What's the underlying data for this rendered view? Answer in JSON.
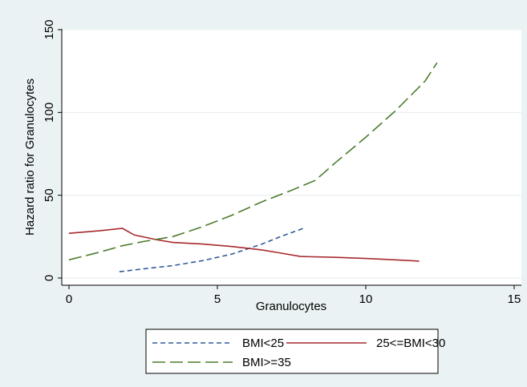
{
  "chart_data": {
    "type": "line",
    "title": "",
    "xlabel": "Granulocytes",
    "ylabel": "Hazard ratio for Granulocytes",
    "xlim": [
      0,
      15
    ],
    "ylim": [
      0,
      150
    ],
    "xticks": [
      0,
      5,
      10,
      15
    ],
    "yticks": [
      0,
      50,
      100,
      150
    ],
    "grid": "horizontal",
    "legend_position": "bottom",
    "series": [
      {
        "name": "BMI<25",
        "color": "#2e5a9a",
        "dash": "short-dash",
        "points": [
          [
            1.7,
            3.8
          ],
          [
            2.5,
            5.5
          ],
          [
            3.5,
            7.5
          ],
          [
            4.5,
            10.5
          ],
          [
            5.5,
            14.5
          ],
          [
            6.5,
            20.5
          ],
          [
            7.2,
            25.5
          ],
          [
            7.9,
            30.0
          ]
        ]
      },
      {
        "name": "25<=BMI<30",
        "color": "#a8292e",
        "dash": "solid",
        "points": [
          [
            0.0,
            27.0
          ],
          [
            1.0,
            28.5
          ],
          [
            1.8,
            30.0
          ],
          [
            2.2,
            26.0
          ],
          [
            3.0,
            23.0
          ],
          [
            3.5,
            21.5
          ],
          [
            4.5,
            20.5
          ],
          [
            5.5,
            19.0
          ],
          [
            6.5,
            17.0
          ],
          [
            7.0,
            15.5
          ],
          [
            7.8,
            13.0
          ],
          [
            9.0,
            12.5
          ],
          [
            10.0,
            11.8
          ],
          [
            11.0,
            11.0
          ],
          [
            11.8,
            10.2
          ]
        ]
      },
      {
        "name": "BMI>=35",
        "color": "#4d7c2c",
        "dash": "long-dash",
        "points": [
          [
            0.0,
            11.0
          ],
          [
            1.0,
            15.5
          ],
          [
            1.8,
            19.5
          ],
          [
            2.5,
            22.0
          ],
          [
            3.5,
            25.0
          ],
          [
            4.5,
            31.0
          ],
          [
            5.5,
            38.0
          ],
          [
            6.5,
            46.0
          ],
          [
            7.5,
            53.0
          ],
          [
            8.3,
            59.0
          ],
          [
            9.0,
            70.0
          ],
          [
            10.0,
            85.0
          ],
          [
            11.0,
            101.0
          ],
          [
            12.0,
            119.0
          ],
          [
            12.4,
            130.0
          ]
        ]
      }
    ]
  }
}
